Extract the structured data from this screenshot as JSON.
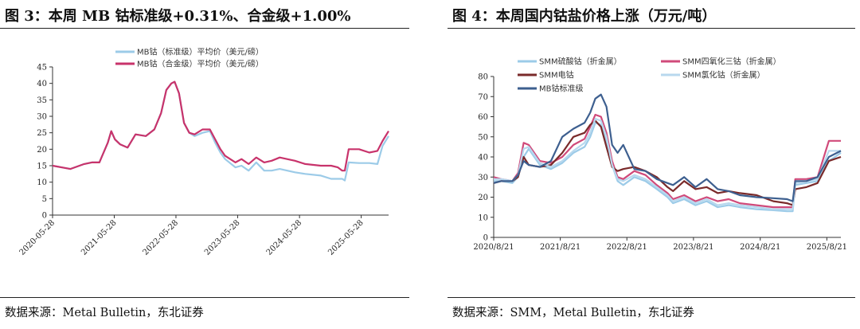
{
  "panels": [
    {
      "title": "图  3：本周 MB 钴标准级+0.31%、合金级+1.00%",
      "source": "数据来源：Metal Bulletin，东北证券"
    },
    {
      "title": "图  4：本周国内钴盐价格上涨（万元/吨）",
      "source": "数据来源：SMM，Metal Bulletin，东北证券"
    }
  ],
  "chart_data": [
    {
      "type": "line",
      "xlabels": [
        "2020-05-28",
        "2021-05-28",
        "2022-05-28",
        "2023-05-28",
        "2024-05-28",
        "2025-05-28"
      ],
      "x_start": "2020-05-28",
      "x_end": "2025-11-06",
      "ylim": [
        0,
        45
      ],
      "yticks": [
        0,
        5,
        10,
        15,
        20,
        25,
        30,
        35,
        40,
        45
      ],
      "legend_position": "top-center",
      "grid": false,
      "series": [
        {
          "name": "MB钴（标准级）平均价（美元/磅）",
          "color": "#9ccbe8",
          "x": [
            "2020-05-28",
            "2020-07-20",
            "2020-09-10",
            "2020-12-01",
            "2021-01-15",
            "2021-02-18",
            "2021-03-01",
            "2021-04-20",
            "2021-05-10",
            "2021-06-01",
            "2021-07-01",
            "2021-08-15",
            "2021-10-01",
            "2021-12-01",
            "2022-01-20",
            "2022-03-01",
            "2022-04-01",
            "2022-05-01",
            "2022-05-20",
            "2022-06-15",
            "2022-07-15",
            "2022-08-15",
            "2022-09-15",
            "2022-11-01",
            "2022-12-15",
            "2023-01-15",
            "2023-02-15",
            "2023-03-15",
            "2023-05-15",
            "2023-06-20",
            "2023-08-01",
            "2023-09-15",
            "2023-11-01",
            "2023-12-15",
            "2024-02-01",
            "2024-05-01",
            "2024-07-01",
            "2024-10-01",
            "2024-12-01",
            "2025-01-10",
            "2025-02-05",
            "2025-02-20",
            "2025-03-15",
            "2025-05-15",
            "2025-07-15",
            "2025-09-01",
            "2025-10-01",
            "2025-11-06"
          ],
          "y": [
            15,
            14.5,
            14,
            15.5,
            16,
            16,
            16,
            22,
            25.5,
            23,
            21.5,
            20.5,
            24.5,
            24,
            26,
            31,
            38,
            40,
            40.5,
            37,
            28,
            25,
            24,
            25,
            25.5,
            22,
            19,
            17,
            14.5,
            15,
            13.5,
            16,
            13.5,
            13.5,
            14,
            13,
            12.5,
            12,
            11,
            11,
            11,
            10.5,
            16,
            15.8,
            15.8,
            15.5,
            21,
            24
          ]
        },
        {
          "name": "MB钴（合金级）平均价（美元/磅）",
          "color": "#c8336b",
          "x": [
            "2020-05-28",
            "2020-07-20",
            "2020-09-10",
            "2020-12-01",
            "2021-01-15",
            "2021-02-18",
            "2021-03-01",
            "2021-04-20",
            "2021-05-10",
            "2021-06-01",
            "2021-07-01",
            "2021-08-15",
            "2021-10-01",
            "2021-12-01",
            "2022-01-20",
            "2022-03-01",
            "2022-04-01",
            "2022-05-01",
            "2022-05-20",
            "2022-06-15",
            "2022-07-15",
            "2022-08-15",
            "2022-09-15",
            "2022-11-01",
            "2022-12-15",
            "2023-01-15",
            "2023-02-15",
            "2023-03-15",
            "2023-05-15",
            "2023-06-20",
            "2023-08-01",
            "2023-09-15",
            "2023-11-01",
            "2023-12-15",
            "2024-02-01",
            "2024-05-01",
            "2024-07-01",
            "2024-10-01",
            "2024-12-01",
            "2025-01-10",
            "2025-02-05",
            "2025-02-20",
            "2025-03-15",
            "2025-05-15",
            "2025-07-15",
            "2025-09-01",
            "2025-10-01",
            "2025-11-06"
          ],
          "y": [
            15,
            14.5,
            14,
            15.5,
            16,
            16,
            16,
            22,
            25.5,
            23,
            21.5,
            20.5,
            24.5,
            24,
            26,
            31,
            38,
            40,
            40.5,
            37,
            28,
            25,
            24.5,
            26,
            26,
            23,
            20,
            18,
            16,
            17,
            15.5,
            17.5,
            16,
            16.5,
            17.5,
            16.5,
            15.5,
            15,
            15,
            14.5,
            13.5,
            13.5,
            20,
            20,
            19,
            19.5,
            22.5,
            25.5
          ]
        }
      ]
    },
    {
      "type": "line",
      "xlabels": [
        "2020/8/21",
        "2021/8/21",
        "2022/8/21",
        "2023/8/21",
        "2024/8/21",
        "2025/8/21"
      ],
      "x_start": "2020-08-21",
      "x_end": "2025-11-06",
      "ylim": [
        0,
        80
      ],
      "yticks": [
        0,
        10,
        20,
        30,
        40,
        50,
        60,
        70,
        80
      ],
      "legend_position": "top",
      "grid": false,
      "series": [
        {
          "name": "SMM硫酸钴（折金属）",
          "color": "#9ccbe8",
          "x": [
            "2020-08-21",
            "2020-10-01",
            "2020-12-01",
            "2021-01-01",
            "2021-02-01",
            "2021-03-01",
            "2021-05-01",
            "2021-07-01",
            "2021-09-01",
            "2021-11-01",
            "2022-01-01",
            "2022-02-01",
            "2022-03-01",
            "2022-04-01",
            "2022-05-01",
            "2022-06-01",
            "2022-07-01",
            "2022-08-01",
            "2022-10-01",
            "2022-12-01",
            "2023-02-01",
            "2023-04-01",
            "2023-05-01",
            "2023-07-01",
            "2023-09-01",
            "2023-11-01",
            "2024-01-01",
            "2024-03-01",
            "2024-05-01",
            "2024-08-01",
            "2024-11-01",
            "2025-01-15",
            "2025-02-15",
            "2025-03-01",
            "2025-05-01",
            "2025-07-01",
            "2025-09-01",
            "2025-11-06"
          ],
          "y": [
            28,
            28,
            27,
            30,
            40,
            44,
            36,
            34,
            37,
            42,
            45,
            50,
            57,
            56,
            47,
            36,
            28,
            26,
            30,
            28,
            24,
            20,
            17,
            19,
            16,
            18,
            15,
            16,
            15,
            14,
            13.5,
            13,
            13,
            26,
            27,
            28,
            38,
            42
          ]
        },
        {
          "name": "SMM四氧化三钴（折金属）",
          "color": "#d04a7a",
          "x": [
            "2020-08-21",
            "2020-10-01",
            "2020-12-01",
            "2021-01-01",
            "2021-02-01",
            "2021-03-01",
            "2021-05-01",
            "2021-07-01",
            "2021-09-01",
            "2021-11-01",
            "2022-01-01",
            "2022-02-01",
            "2022-03-01",
            "2022-04-01",
            "2022-05-01",
            "2022-06-01",
            "2022-07-01",
            "2022-08-01",
            "2022-10-01",
            "2022-12-01",
            "2023-02-01",
            "2023-04-01",
            "2023-05-01",
            "2023-07-01",
            "2023-09-01",
            "2023-11-01",
            "2024-01-01",
            "2024-03-01",
            "2024-05-01",
            "2024-08-01",
            "2024-11-01",
            "2025-01-15",
            "2025-02-15",
            "2025-03-01",
            "2025-05-01",
            "2025-07-01",
            "2025-09-01",
            "2025-11-06"
          ],
          "y": [
            30,
            29,
            28,
            32,
            47,
            46,
            38,
            37,
            40,
            46,
            49,
            55,
            61,
            60,
            52,
            38,
            30,
            29,
            33,
            31,
            26,
            22,
            19,
            21,
            18,
            20,
            18,
            19,
            17,
            16,
            15,
            15,
            15,
            29,
            29,
            30,
            48,
            48
          ]
        },
        {
          "name": "SMM电钴",
          "color": "#7a2a2a",
          "x": [
            "2020-08-21",
            "2020-10-01",
            "2020-12-01",
            "2021-01-01",
            "2021-02-01",
            "2021-03-01",
            "2021-05-01",
            "2021-07-01",
            "2021-09-01",
            "2021-11-01",
            "2022-01-01",
            "2022-02-01",
            "2022-03-01",
            "2022-04-01",
            "2022-05-01",
            "2022-06-01",
            "2022-07-01",
            "2022-08-01",
            "2022-10-01",
            "2022-12-01",
            "2023-02-01",
            "2023-04-01",
            "2023-05-01",
            "2023-07-01",
            "2023-09-01",
            "2023-11-01",
            "2024-01-01",
            "2024-03-01",
            "2024-05-01",
            "2024-08-01",
            "2024-11-01",
            "2025-01-15",
            "2025-02-15",
            "2025-03-01",
            "2025-05-01",
            "2025-07-01",
            "2025-09-01",
            "2025-11-06"
          ],
          "y": [
            27,
            28,
            28,
            30,
            40,
            36,
            35,
            36,
            42,
            50,
            52,
            56,
            58,
            55,
            45,
            35,
            33,
            34,
            35,
            33,
            30,
            25,
            23,
            28,
            24,
            25,
            22,
            23,
            22,
            21,
            18,
            17,
            16,
            24,
            25,
            27,
            38,
            40
          ]
        },
        {
          "name": "SMM氯化钴（折金属）",
          "color": "#b8d8ee",
          "x": [
            "2020-08-21",
            "2020-10-01",
            "2020-12-01",
            "2021-01-01",
            "2021-02-01",
            "2021-03-01",
            "2021-05-01",
            "2021-07-01",
            "2021-09-01",
            "2021-11-01",
            "2022-01-01",
            "2022-02-01",
            "2022-03-01",
            "2022-04-01",
            "2022-05-01",
            "2022-06-01",
            "2022-07-01",
            "2022-08-01",
            "2022-10-01",
            "2022-12-01",
            "2023-02-01",
            "2023-04-01",
            "2023-05-01",
            "2023-07-01",
            "2023-09-01",
            "2023-11-01",
            "2024-01-01",
            "2024-03-01",
            "2024-05-01",
            "2024-08-01",
            "2024-11-01",
            "2025-01-15",
            "2025-02-15",
            "2025-03-01",
            "2025-05-01",
            "2025-07-01",
            "2025-09-01",
            "2025-11-06"
          ],
          "y": [
            29,
            29,
            28,
            31,
            44,
            45,
            37,
            35,
            38,
            43,
            47,
            52,
            59,
            58,
            50,
            36,
            29,
            28,
            31,
            29,
            25,
            21,
            18,
            20,
            17,
            19,
            16,
            17,
            16,
            15,
            14,
            14,
            14,
            27,
            28,
            29,
            43,
            43
          ]
        },
        {
          "name": "MB钴标准级",
          "color": "#3d5f8f",
          "x": [
            "2020-08-21",
            "2020-10-01",
            "2020-12-01",
            "2021-01-01",
            "2021-02-01",
            "2021-03-01",
            "2021-05-01",
            "2021-07-01",
            "2021-09-01",
            "2021-11-01",
            "2022-01-01",
            "2022-02-01",
            "2022-03-01",
            "2022-04-01",
            "2022-05-01",
            "2022-06-01",
            "2022-07-01",
            "2022-08-01",
            "2022-10-01",
            "2022-12-01",
            "2023-02-01",
            "2023-04-01",
            "2023-05-01",
            "2023-07-01",
            "2023-09-01",
            "2023-11-01",
            "2024-01-01",
            "2024-03-01",
            "2024-05-01",
            "2024-08-01",
            "2024-11-01",
            "2025-01-15",
            "2025-02-15",
            "2025-03-01",
            "2025-05-01",
            "2025-07-01",
            "2025-09-01",
            "2025-11-06"
          ],
          "y": [
            27,
            28,
            28,
            31,
            38,
            36,
            35,
            38,
            50,
            54,
            57,
            62,
            69,
            71,
            65,
            46,
            42,
            46,
            34,
            33,
            29,
            27,
            26,
            30,
            25,
            29,
            24,
            23,
            21,
            20,
            19.5,
            19,
            18,
            28,
            28,
            30,
            40,
            43
          ]
        }
      ]
    }
  ]
}
